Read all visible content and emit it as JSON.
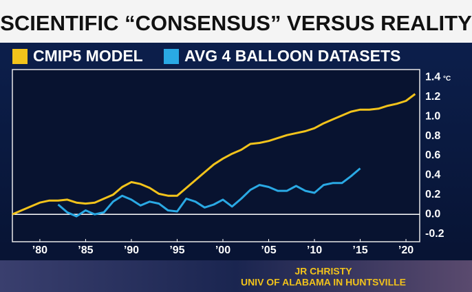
{
  "chart_data": {
    "type": "line",
    "title": "SCIENTIFIC “CONSENSUS” VERSUS REALITY",
    "y_unit": "°C",
    "source_lines": [
      "JR CHRISTY",
      "UNIV OF ALABAMA IN HUNTSVILLE"
    ],
    "x": [
      1977,
      1978,
      1979,
      1980,
      1981,
      1982,
      1983,
      1984,
      1985,
      1986,
      1987,
      1988,
      1989,
      1990,
      1991,
      1992,
      1993,
      1994,
      1995,
      1996,
      1997,
      1998,
      1999,
      2000,
      2001,
      2002,
      2003,
      2004,
      2005,
      2006,
      2007,
      2008,
      2009,
      2010,
      2011,
      2012,
      2013,
      2014,
      2015,
      2016,
      2017,
      2018,
      2019,
      2020,
      2021
    ],
    "series": [
      {
        "name": "CMIP5 MODEL",
        "color": "#f2c31b",
        "values": [
          0.0,
          0.04,
          0.08,
          0.12,
          0.14,
          0.14,
          0.15,
          0.12,
          0.11,
          0.12,
          0.16,
          0.2,
          0.28,
          0.33,
          0.31,
          0.27,
          0.21,
          0.19,
          0.19,
          0.27,
          0.35,
          0.43,
          0.51,
          0.57,
          0.62,
          0.66,
          0.72,
          0.73,
          0.75,
          0.78,
          0.81,
          0.83,
          0.85,
          0.88,
          0.93,
          0.97,
          1.01,
          1.05,
          1.07,
          1.07,
          1.08,
          1.11,
          1.13,
          1.16,
          1.23
        ]
      },
      {
        "name": "AVG 4 BALLOON DATASETS",
        "color": "#2aa9e4",
        "values": [
          null,
          null,
          null,
          null,
          null,
          0.1,
          0.02,
          -0.02,
          0.04,
          0.0,
          0.02,
          0.13,
          0.19,
          0.15,
          0.09,
          0.13,
          0.11,
          0.04,
          0.03,
          0.16,
          0.13,
          0.07,
          0.1,
          0.15,
          0.08,
          0.16,
          0.25,
          0.3,
          0.28,
          0.24,
          0.24,
          0.29,
          0.24,
          0.22,
          0.3,
          0.32,
          0.32,
          0.39,
          0.47,
          null,
          null,
          null,
          null,
          null,
          null
        ]
      }
    ],
    "xlim": [
      1977,
      2021.5
    ],
    "xticks": [
      {
        "value": 1980,
        "label": "’80"
      },
      {
        "value": 1985,
        "label": "’85"
      },
      {
        "value": 1990,
        "label": "’90"
      },
      {
        "value": 1995,
        "label": "’95"
      },
      {
        "value": 2000,
        "label": "’00"
      },
      {
        "value": 2005,
        "label": "’05"
      },
      {
        "value": 2010,
        "label": "’10"
      },
      {
        "value": 2015,
        "label": "’15"
      },
      {
        "value": 2020,
        "label": "’20"
      }
    ],
    "ylim": [
      -0.28,
      1.48
    ],
    "yticks": [
      1.4,
      1.2,
      {
        "value": 1,
        "label": "1.0"
      },
      0.8,
      0.6,
      0.4,
      0.2,
      {
        "value": 0,
        "label": "0.0"
      },
      {
        "value": -0.2,
        "label": "-0.2"
      }
    ],
    "grid": false,
    "zero_line": true
  }
}
